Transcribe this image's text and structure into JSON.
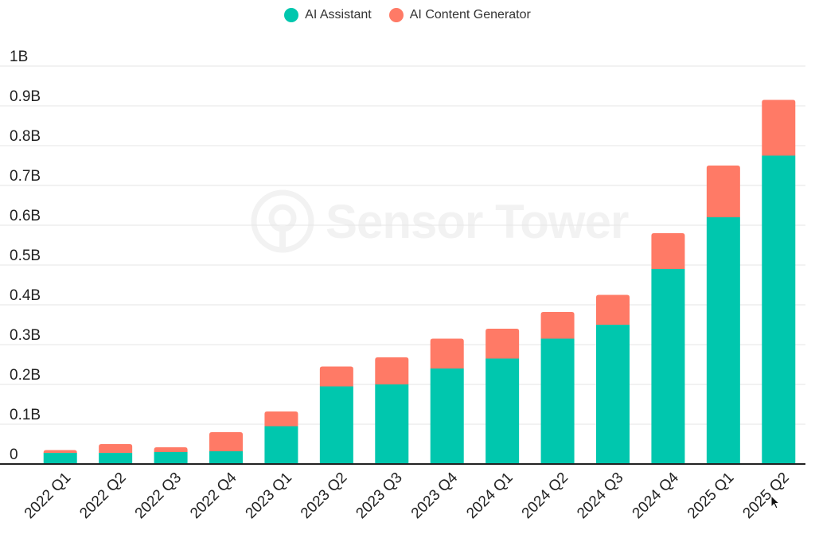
{
  "watermark": "Sensor Tower",
  "colors": {
    "assistant": "#00c7ae",
    "generator": "#ff7a66",
    "grid": "#e6e6e6",
    "axis": "#222222",
    "text": "#222222"
  },
  "legend": [
    {
      "label": "AI Assistant",
      "color": "#00c7ae"
    },
    {
      "label": "AI Content Generator",
      "color": "#ff7a66"
    }
  ],
  "chart_data": {
    "type": "bar",
    "stacked": true,
    "categories": [
      "2022 Q1",
      "2022 Q2",
      "2022 Q3",
      "2022 Q4",
      "2023 Q1",
      "2023 Q2",
      "2023 Q3",
      "2023 Q4",
      "2024 Q1",
      "2024 Q2",
      "2024 Q3",
      "2024 Q4",
      "2025 Q1",
      "2025 Q2"
    ],
    "series": [
      {
        "name": "AI Assistant",
        "values": [
          0.028,
          0.028,
          0.03,
          0.032,
          0.095,
          0.195,
          0.2,
          0.24,
          0.265,
          0.315,
          0.35,
          0.49,
          0.62,
          0.775
        ]
      },
      {
        "name": "AI Content Generator",
        "values": [
          0.007,
          0.022,
          0.012,
          0.048,
          0.037,
          0.05,
          0.068,
          0.075,
          0.075,
          0.067,
          0.075,
          0.09,
          0.13,
          0.14
        ]
      }
    ],
    "yticks": [
      "0",
      "0.1B",
      "0.2B",
      "0.3B",
      "0.4B",
      "0.5B",
      "0.6B",
      "0.7B",
      "0.8B",
      "0.9B",
      "1B"
    ],
    "ylim": [
      0,
      1
    ],
    "grid": true,
    "legend_position": "top-center"
  }
}
